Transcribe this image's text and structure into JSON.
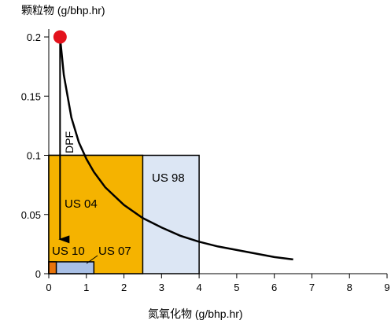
{
  "chart_data": {
    "type": "area",
    "title": "",
    "xlabel": "氮氧化物 (g/bhp.hr)",
    "ylabel": "颗粒物 (g/bhp.hr)",
    "xlim": [
      0,
      9
    ],
    "ylim": [
      0,
      0.2
    ],
    "x_ticks": [
      0,
      1,
      2,
      3,
      4,
      5,
      6,
      7,
      8,
      9
    ],
    "x_tick_labels": [
      "0",
      "1",
      "2",
      "3",
      "4",
      "5",
      "6",
      "7",
      "8",
      "9"
    ],
    "y_ticks": [
      0,
      0.05,
      0.1,
      0.15,
      0.2
    ],
    "y_tick_labels": [
      "0",
      "0.05",
      "0.1",
      "0.15",
      "0.2"
    ],
    "grid": false,
    "regions": [
      {
        "name": "US 98",
        "x": [
          0,
          4.0
        ],
        "y": [
          0,
          0.1
        ],
        "color": "#dce6f4"
      },
      {
        "name": "US 04",
        "x": [
          0,
          2.5
        ],
        "y": [
          0,
          0.1
        ],
        "color": "#f5b300"
      },
      {
        "name": "US 07",
        "x": [
          0,
          1.2
        ],
        "y": [
          0,
          0.01
        ],
        "color": "#a9c0e6"
      },
      {
        "name": "US 10",
        "x": [
          0,
          0.2
        ],
        "y": [
          0,
          0.01
        ],
        "color": "#e8730a"
      }
    ],
    "curve": {
      "color": "#000000",
      "x": [
        0.3,
        0.4,
        0.6,
        0.8,
        1.0,
        1.2,
        1.5,
        2.0,
        2.5,
        3.0,
        3.5,
        4.0,
        4.5,
        5.0,
        5.5,
        6.0,
        6.5
      ],
      "y": [
        0.2,
        0.168,
        0.132,
        0.111,
        0.097,
        0.086,
        0.073,
        0.058,
        0.047,
        0.039,
        0.032,
        0.027,
        0.023,
        0.02,
        0.017,
        0.014,
        0.012
      ]
    },
    "marker": {
      "x": 0.3,
      "y": 0.2,
      "color": "#e3121c"
    },
    "annotations": [
      {
        "text": "DPF",
        "type": "arrow",
        "from": [
          0.3,
          0.2
        ],
        "to": [
          0.3,
          0.029
        ]
      }
    ]
  }
}
